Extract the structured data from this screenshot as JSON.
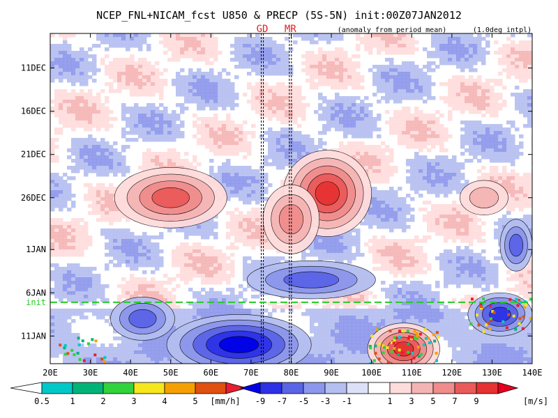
{
  "title": "NCEP_FNL+NICAM_fcst U850 & PRECP (5S-5N) init:00Z07JAN2012",
  "subtitle_left": "(anomaly from period mean)",
  "subtitle_right": "(1.0deg intpl)",
  "markers": [
    {
      "label": "GD",
      "lon": 72.8
    },
    {
      "label": "MR",
      "lon": 79.8
    }
  ],
  "colors": {
    "background": "#ffffff",
    "frame": "#000000",
    "marker_label": "#e02020",
    "init_line": "#22cc22"
  },
  "chart_data": {
    "type": "heatmap",
    "title": "NCEP_FNL+NICAM_fcst U850 & PRECP (5S-5N) init:00Z07JAN2012",
    "xlabel": "",
    "ylabel": "",
    "xlim": [
      20,
      140
    ],
    "x_ticks": [
      "20E",
      "30E",
      "40E",
      "50E",
      "60E",
      "70E",
      "80E",
      "90E",
      "100E",
      "110E",
      "120E",
      "130E",
      "140E"
    ],
    "y_ticks": [
      {
        "label": "11DEC",
        "day": 4
      },
      {
        "label": "16DEC",
        "day": 9
      },
      {
        "label": "21DEC",
        "day": 14
      },
      {
        "label": "26DEC",
        "day": 19
      },
      {
        "label": "1JAN",
        "day": 25
      },
      {
        "label": "6JAN",
        "day": 30
      },
      {
        "label": "11JAN",
        "day": 35
      }
    ],
    "y_day_range": [
      0,
      38.2
    ],
    "init": {
      "label": "init",
      "day": 31.1
    },
    "features": [
      {
        "lon": 50,
        "day": 19.0,
        "rx": 14,
        "ry": 3.5,
        "value": 7
      },
      {
        "lon": 89,
        "day": 18.5,
        "rx": 11,
        "ry": 5.0,
        "value": 9
      },
      {
        "lon": 80,
        "day": 21.5,
        "rx": 7,
        "ry": 4.0,
        "value": 6
      },
      {
        "lon": 67,
        "day": 36.0,
        "rx": 18,
        "ry": 3.5,
        "value": -9
      },
      {
        "lon": 43,
        "day": 33.0,
        "rx": 8,
        "ry": 2.5,
        "value": -6
      },
      {
        "lon": 85,
        "day": 28.5,
        "rx": 16,
        "ry": 2.2,
        "value": -6
      },
      {
        "lon": 132,
        "day": 32.5,
        "rx": 8,
        "ry": 2.5,
        "value": -7
      },
      {
        "lon": 108,
        "day": 36.5,
        "rx": 9,
        "ry": 3.0,
        "value": 9
      },
      {
        "lon": 128,
        "day": 19.0,
        "rx": 6,
        "ry": 2.0,
        "value": 4
      },
      {
        "lon": 136,
        "day": 24.5,
        "rx": 4,
        "ry": 3.0,
        "value": -5
      }
    ],
    "precip_legend": {
      "labels": [
        "0.5",
        "1",
        "2",
        "3",
        "4",
        "5"
      ],
      "unit": "[mm/h]",
      "colors": [
        "#00c8c8",
        "#00b478",
        "#32d23c",
        "#f5e61e",
        "#f5a000",
        "#e05010",
        "#e61e32"
      ]
    },
    "wind_legend": {
      "labels": [
        "-9",
        "-7",
        "-5",
        "-3",
        "-1",
        "1",
        "3",
        "5",
        "7",
        "9"
      ],
      "unit": "[m/s]",
      "colors": [
        "#0000e6",
        "#2d32e6",
        "#5a64e6",
        "#8c96eb",
        "#b4bef0",
        "#dce1f8",
        "#ffffff",
        "#ffdcdc",
        "#f5b4b4",
        "#f08c8c",
        "#eb5a5a",
        "#e63232",
        "#e6001e"
      ]
    }
  }
}
